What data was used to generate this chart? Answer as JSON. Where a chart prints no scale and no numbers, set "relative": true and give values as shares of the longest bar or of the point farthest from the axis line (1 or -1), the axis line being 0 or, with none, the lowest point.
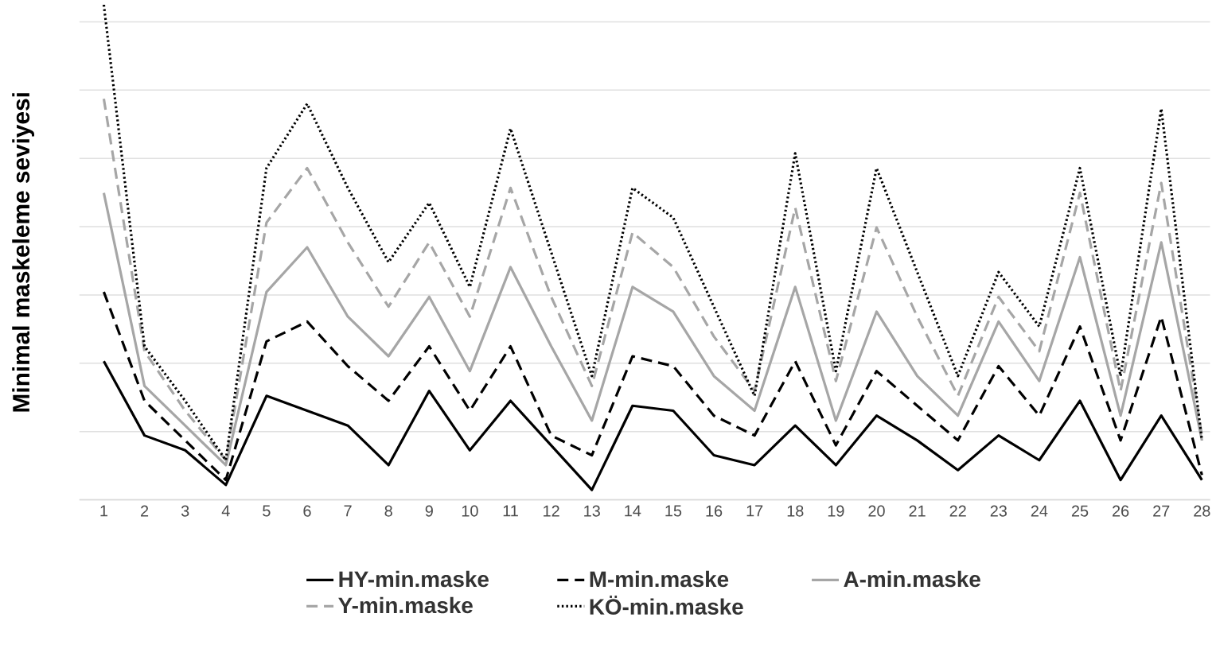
{
  "chart_data": {
    "type": "line",
    "relative": true,
    "ylabel": "Minimal maskeleme seviyesi",
    "categories": [
      "1",
      "2",
      "3",
      "4",
      "5",
      "6",
      "7",
      "8",
      "9",
      "10",
      "11",
      "12",
      "13",
      "14",
      "15",
      "16",
      "17",
      "18",
      "19",
      "20",
      "21",
      "22",
      "23",
      "24",
      "25",
      "26",
      "27",
      "28"
    ],
    "grid": "y",
    "legend": "bottom",
    "marker": "none",
    "series": [
      {
        "name": "HY-min.maske",
        "color": "#000000",
        "line_style": "solid",
        "values": [
          0.28,
          0.13,
          0.1,
          0.03,
          0.21,
          0.18,
          0.15,
          0.07,
          0.22,
          0.1,
          0.2,
          0.11,
          0.02,
          0.19,
          0.18,
          0.09,
          0.07,
          0.15,
          0.07,
          0.17,
          0.12,
          0.06,
          0.13,
          0.08,
          0.2,
          0.04,
          0.17,
          0.04
        ]
      },
      {
        "name": "M-min.maske",
        "color": "#000000",
        "line_style": "dashed",
        "values": [
          0.42,
          0.2,
          0.12,
          0.04,
          0.32,
          0.36,
          0.27,
          0.2,
          0.31,
          0.18,
          0.31,
          0.13,
          0.09,
          0.29,
          0.27,
          0.17,
          0.13,
          0.28,
          0.11,
          0.26,
          0.19,
          0.12,
          0.27,
          0.17,
          0.35,
          0.12,
          0.37,
          0.05
        ]
      },
      {
        "name": "A-min.maske",
        "color": "#a6a6a6",
        "line_style": "solid",
        "values": [
          0.62,
          0.23,
          0.15,
          0.07,
          0.42,
          0.51,
          0.37,
          0.29,
          0.41,
          0.26,
          0.47,
          0.31,
          0.16,
          0.43,
          0.38,
          0.25,
          0.18,
          0.43,
          0.16,
          0.38,
          0.25,
          0.17,
          0.36,
          0.24,
          0.49,
          0.17,
          0.52,
          0.12
        ]
      },
      {
        "name": "Y-min.maske",
        "color": "#a6a6a6",
        "line_style": "dashed",
        "values": [
          0.81,
          0.3,
          0.18,
          0.08,
          0.56,
          0.67,
          0.52,
          0.39,
          0.52,
          0.37,
          0.63,
          0.41,
          0.23,
          0.54,
          0.47,
          0.33,
          0.22,
          0.59,
          0.24,
          0.55,
          0.37,
          0.21,
          0.41,
          0.3,
          0.62,
          0.22,
          0.64,
          0.13
        ]
      },
      {
        "name": "KÖ-min.maske",
        "color": "#000000",
        "line_style": "dotted",
        "values": [
          1.0,
          0.31,
          0.2,
          0.08,
          0.67,
          0.8,
          0.63,
          0.48,
          0.6,
          0.43,
          0.75,
          0.5,
          0.25,
          0.63,
          0.57,
          0.39,
          0.21,
          0.7,
          0.26,
          0.67,
          0.46,
          0.25,
          0.46,
          0.35,
          0.67,
          0.25,
          0.79,
          0.12
        ]
      }
    ]
  }
}
